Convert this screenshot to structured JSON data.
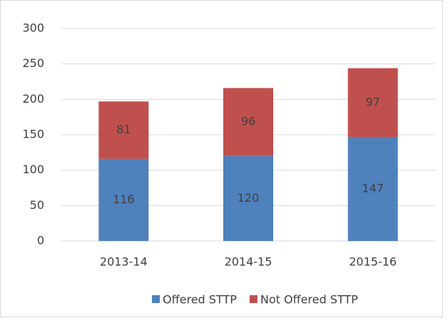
{
  "chart_data": {
    "type": "stacked_bar",
    "categories": [
      "2013-14",
      "2014-15",
      "2015-16"
    ],
    "series": [
      {
        "name": "Offered STTP",
        "color": "#4f81bd",
        "values": [
          116,
          120,
          147
        ]
      },
      {
        "name": "Not Offered STTP",
        "color": "#c0504d",
        "values": [
          81,
          96,
          97
        ]
      }
    ],
    "ylim": [
      0,
      300
    ],
    "yticks": [
      0,
      50,
      100,
      150,
      200,
      250,
      300
    ],
    "grid": true,
    "legend": "bottom"
  }
}
